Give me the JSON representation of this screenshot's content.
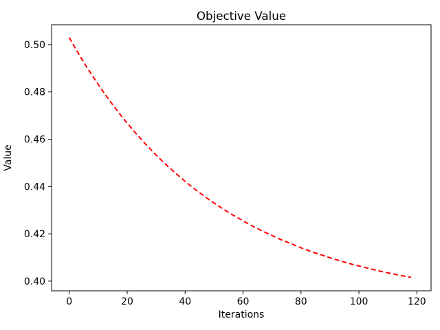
{
  "figure": {
    "background": "#ffffff",
    "text_color": "#000000",
    "spine_color": "#000000"
  },
  "chart_data": {
    "type": "line",
    "title": "Objective Value",
    "xlabel": "Iterations",
    "ylabel": "Value",
    "grid": false,
    "legend": null,
    "xlim": [
      -6.1,
      124.9
    ],
    "ylim": [
      0.3959,
      0.5084
    ],
    "xticks": {
      "values": [
        0,
        20,
        40,
        60,
        80,
        100,
        120
      ],
      "labels": [
        "0",
        "20",
        "40",
        "60",
        "80",
        "100",
        "120"
      ]
    },
    "yticks": {
      "values": [
        0.4,
        0.42,
        0.44,
        0.46,
        0.48,
        0.5
      ],
      "labels": [
        "0.40",
        "0.42",
        "0.44",
        "0.46",
        "0.48",
        "0.50"
      ]
    },
    "series": [
      {
        "name": "objective-value",
        "color": "#ff0000",
        "linestyle": "dashed",
        "linewidth": 2,
        "x": [
          0,
          2,
          4,
          6,
          8,
          10,
          12,
          14,
          16,
          18,
          20,
          22,
          24,
          26,
          28,
          30,
          32,
          34,
          36,
          38,
          40,
          42,
          44,
          46,
          48,
          50,
          52,
          54,
          56,
          58,
          60,
          62,
          64,
          66,
          68,
          70,
          72,
          74,
          76,
          78,
          80,
          82,
          84,
          86,
          88,
          90,
          92,
          94,
          96,
          98,
          100,
          102,
          104,
          106,
          108,
          110,
          112,
          114,
          116,
          118
        ],
        "y": [
          0.503,
          0.4987,
          0.4946,
          0.4906,
          0.4868,
          0.4832,
          0.4796,
          0.4762,
          0.473,
          0.4698,
          0.4668,
          0.4639,
          0.4611,
          0.4584,
          0.4558,
          0.4533,
          0.4509,
          0.4486,
          0.4464,
          0.4443,
          0.4422,
          0.4402,
          0.4383,
          0.4365,
          0.4347,
          0.433,
          0.4314,
          0.4298,
          0.4283,
          0.4269,
          0.4255,
          0.4241,
          0.4228,
          0.4216,
          0.4204,
          0.4193,
          0.4181,
          0.4171,
          0.4161,
          0.4151,
          0.4141,
          0.4132,
          0.4123,
          0.4115,
          0.4107,
          0.4099,
          0.4091,
          0.4084,
          0.4077,
          0.407,
          0.4064,
          0.4058,
          0.4052,
          0.4046,
          0.404,
          0.4035,
          0.403,
          0.4025,
          0.402,
          0.4016
        ]
      }
    ]
  }
}
